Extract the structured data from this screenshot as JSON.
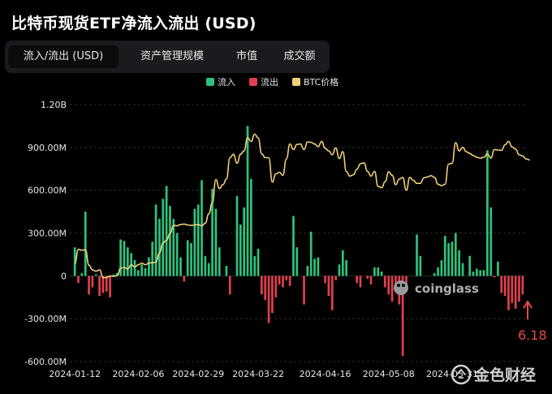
{
  "title": "比特币现货ETF净流入流出 (USD)",
  "tabs": [
    "流入/流出 (USD)",
    "资产管理规模",
    "市值",
    "成交额"
  ],
  "watermark": "coinglass",
  "brand": "金色财经",
  "chart_data": {
    "type": "bar",
    "legend": [
      "流入",
      "流出",
      "BTC价格"
    ],
    "colors": {
      "inflow": "#2ec27e",
      "outflow": "#e0404f",
      "price": "#f0d078"
    },
    "ylim": [
      -600,
      1200
    ],
    "yticks": [
      "-600.00M",
      "-300.00M",
      "0",
      "300.00M",
      "600.00M",
      "900.00M",
      "1.20B"
    ],
    "ytick_values": [
      -600,
      -300,
      0,
      300,
      600,
      900,
      1200
    ],
    "xticks": [
      "2024-01-12",
      "2024-02-06",
      "2024-02-29",
      "2024-03-22",
      "2024-04-16",
      "2024-05-08",
      "2024-05-31"
    ],
    "annotation": "6.18",
    "flows": [
      200,
      -50,
      20,
      450,
      -130,
      -80,
      10,
      -140,
      -120,
      -110,
      -150,
      10,
      20,
      255,
      245,
      200,
      160,
      110,
      40,
      80,
      55,
      130,
      240,
      500,
      400,
      540,
      630,
      490,
      400,
      300,
      130,
      -40,
      250,
      230,
      470,
      500,
      670,
      140,
      90,
      610,
      470,
      200,
      0,
      70,
      -130,
      0,
      560,
      360,
      480,
      1050,
      680,
      140,
      190,
      -130,
      -170,
      -330,
      -260,
      -150,
      -60,
      -80,
      -30,
      -70,
      420,
      200,
      0,
      -200,
      70,
      310,
      120,
      130,
      0,
      -50,
      -140,
      -240,
      -30,
      80,
      180,
      110,
      0,
      0,
      -50,
      -80,
      0,
      -20,
      -60,
      60,
      60,
      30,
      -80,
      -130,
      -180,
      -100,
      -200,
      -560,
      -90,
      0,
      0,
      290,
      140,
      0,
      0,
      0,
      20,
      60,
      110,
      280,
      230,
      240,
      300,
      180,
      90,
      0,
      140,
      30,
      50,
      40,
      40,
      880,
      480,
      -10,
      100,
      -120,
      -140,
      -240,
      -190,
      -230,
      -180,
      -130
    ],
    "btc_price": [
      42800,
      46200,
      46000,
      46100,
      42500,
      41400,
      41100,
      41400,
      39600,
      39600,
      40000,
      39900,
      40100,
      41800,
      42000,
      41600,
      42600,
      42100,
      42600,
      43000,
      42600,
      43000,
      43100,
      43200,
      45400,
      47700,
      48300,
      49900,
      51800,
      51700,
      52000,
      52100,
      51900,
      51800,
      51900,
      52000,
      51700,
      52300,
      54500,
      57100,
      62500,
      60400,
      61300,
      62600,
      67600,
      68400,
      66300,
      68400,
      69200,
      72300,
      71400,
      73100,
      72200,
      68500,
      67600,
      67600,
      61900,
      63800,
      64200,
      63500,
      67300,
      70800,
      69500,
      70700,
      70800,
      69500,
      71300,
      71200,
      70800,
      70200,
      71400,
      69800,
      69200,
      68300,
      69900,
      67400,
      69000,
      64400,
      63300,
      63600,
      64900,
      66200,
      66400,
      64400,
      63300,
      64400,
      60900,
      60600,
      62000,
      64300,
      63500,
      61300,
      62600,
      63000,
      60000,
      63000,
      62300,
      61600,
      61600,
      62900,
      63100,
      63400,
      63000,
      61400,
      61100,
      61400,
      66100,
      66300,
      71100,
      69200,
      70000,
      69000,
      68600,
      68100,
      67700,
      67500,
      67700,
      68500,
      67500,
      69500,
      69400,
      69300,
      70600,
      71400,
      70100,
      69600,
      68300,
      68000,
      67300,
      67100
    ],
    "price_scale": {
      "btc_min": 40000,
      "btc_max": 80000,
      "flow_min": 0,
      "flow_max": 1200
    }
  }
}
